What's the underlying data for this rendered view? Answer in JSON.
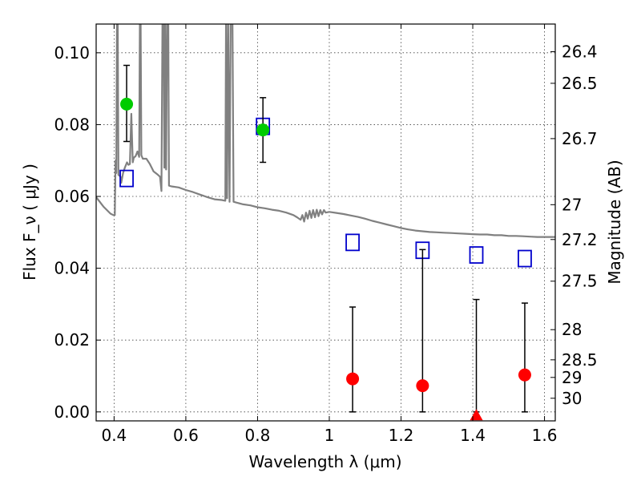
{
  "chart_data": {
    "type": "scatter",
    "title": "",
    "xlabel": "Wavelength  λ (μm)",
    "ylabel": "Flux  F_ν  ( μJy )",
    "ylabel_right": "Magnitude (AB)",
    "xlim": [
      0.35,
      1.63
    ],
    "ylim": [
      -0.0025,
      0.108
    ],
    "grid": true,
    "x_ticks": [
      0.4,
      0.6,
      0.8,
      1.0,
      1.2,
      1.4,
      1.6
    ],
    "x_tick_labels": [
      "0.4",
      "0.6",
      "0.8",
      "1",
      "1.2",
      "1.4",
      "1.6"
    ],
    "y_ticks": [
      0.0,
      0.02,
      0.04,
      0.06,
      0.08,
      0.1
    ],
    "y_tick_labels": [
      "0.00",
      "0.02",
      "0.04",
      "0.06",
      "0.08",
      "0.10"
    ],
    "mag_ticks": [
      {
        "label": "26.4",
        "flux": 0.1003
      },
      {
        "label": "26.5",
        "flux": 0.0915
      },
      {
        "label": "26.7",
        "flux": 0.0761
      },
      {
        "label": "27",
        "flux": 0.0577
      },
      {
        "label": "27.2",
        "flux": 0.048
      },
      {
        "label": "27.5",
        "flux": 0.0364
      },
      {
        "label": "28",
        "flux": 0.0229
      },
      {
        "label": "28.5",
        "flux": 0.0145
      },
      {
        "label": "29",
        "flux": 0.0096
      },
      {
        "label": "30",
        "flux": 0.0038
      }
    ],
    "series": [
      {
        "type": "line",
        "color": "#808080",
        "points": [
          [
            0.35,
            0.0598
          ],
          [
            0.36,
            0.0585
          ],
          [
            0.37,
            0.0572
          ],
          [
            0.38,
            0.0562
          ],
          [
            0.39,
            0.0552
          ],
          [
            0.398,
            0.0548
          ],
          [
            0.402,
            0.0548
          ],
          [
            0.404,
            0.07
          ],
          [
            0.406,
            0.0665
          ],
          [
            0.408,
            0.11
          ],
          [
            0.41,
            0.11
          ],
          [
            0.412,
            0.066
          ],
          [
            0.418,
            0.0655
          ],
          [
            0.42,
            0.0638
          ],
          [
            0.425,
            0.0665
          ],
          [
            0.43,
            0.068
          ],
          [
            0.436,
            0.0695
          ],
          [
            0.44,
            0.0688
          ],
          [
            0.444,
            0.069
          ],
          [
            0.448,
            0.083
          ],
          [
            0.452,
            0.0695
          ],
          [
            0.455,
            0.0708
          ],
          [
            0.46,
            0.0712
          ],
          [
            0.465,
            0.0725
          ],
          [
            0.47,
            0.071
          ],
          [
            0.472,
            0.11
          ],
          [
            0.474,
            0.11
          ],
          [
            0.476,
            0.0715
          ],
          [
            0.48,
            0.0705
          ],
          [
            0.49,
            0.0705
          ],
          [
            0.5,
            0.069
          ],
          [
            0.51,
            0.067
          ],
          [
            0.52,
            0.0662
          ],
          [
            0.528,
            0.0655
          ],
          [
            0.532,
            0.0615
          ],
          [
            0.535,
            0.11
          ],
          [
            0.538,
            0.11
          ],
          [
            0.54,
            0.068
          ],
          [
            0.542,
            0.11
          ],
          [
            0.545,
            0.0675
          ],
          [
            0.548,
            0.11
          ],
          [
            0.551,
            0.11
          ],
          [
            0.553,
            0.063
          ],
          [
            0.56,
            0.0628
          ],
          [
            0.58,
            0.0625
          ],
          [
            0.6,
            0.0618
          ],
          [
            0.62,
            0.0612
          ],
          [
            0.64,
            0.0605
          ],
          [
            0.66,
            0.0598
          ],
          [
            0.68,
            0.0592
          ],
          [
            0.7,
            0.059
          ],
          [
            0.71,
            0.0588
          ],
          [
            0.712,
            0.11
          ],
          [
            0.715,
            0.0595
          ],
          [
            0.718,
            0.11
          ],
          [
            0.722,
            0.0585
          ],
          [
            0.725,
            0.11
          ],
          [
            0.73,
            0.11
          ],
          [
            0.733,
            0.0585
          ],
          [
            0.74,
            0.0583
          ],
          [
            0.76,
            0.0578
          ],
          [
            0.78,
            0.0575
          ],
          [
            0.8,
            0.057
          ],
          [
            0.82,
            0.0567
          ],
          [
            0.84,
            0.0563
          ],
          [
            0.86,
            0.056
          ],
          [
            0.88,
            0.0555
          ],
          [
            0.9,
            0.0548
          ],
          [
            0.91,
            0.0542
          ],
          [
            0.92,
            0.0535
          ],
          [
            0.925,
            0.0548
          ],
          [
            0.93,
            0.053
          ],
          [
            0.935,
            0.0555
          ],
          [
            0.94,
            0.0538
          ],
          [
            0.945,
            0.056
          ],
          [
            0.95,
            0.054
          ],
          [
            0.955,
            0.0562
          ],
          [
            0.96,
            0.0542
          ],
          [
            0.965,
            0.0563
          ],
          [
            0.97,
            0.0545
          ],
          [
            0.975,
            0.0562
          ],
          [
            0.98,
            0.055
          ],
          [
            0.985,
            0.0562
          ],
          [
            0.99,
            0.0555
          ],
          [
            1.0,
            0.0557
          ],
          [
            1.02,
            0.0554
          ],
          [
            1.04,
            0.0551
          ],
          [
            1.06,
            0.0547
          ],
          [
            1.08,
            0.0543
          ],
          [
            1.1,
            0.0538
          ],
          [
            1.12,
            0.0532
          ],
          [
            1.14,
            0.0527
          ],
          [
            1.16,
            0.0522
          ],
          [
            1.18,
            0.0517
          ],
          [
            1.2,
            0.0512
          ],
          [
            1.22,
            0.0508
          ],
          [
            1.24,
            0.0505
          ],
          [
            1.26,
            0.0503
          ],
          [
            1.28,
            0.0501
          ],
          [
            1.3,
            0.05
          ],
          [
            1.32,
            0.0499
          ],
          [
            1.34,
            0.0498
          ],
          [
            1.36,
            0.0497
          ],
          [
            1.38,
            0.0496
          ],
          [
            1.4,
            0.0495
          ],
          [
            1.42,
            0.0494
          ],
          [
            1.44,
            0.0494
          ],
          [
            1.46,
            0.0492
          ],
          [
            1.48,
            0.0492
          ],
          [
            1.5,
            0.049
          ],
          [
            1.52,
            0.049
          ],
          [
            1.54,
            0.0489
          ],
          [
            1.56,
            0.0488
          ],
          [
            1.58,
            0.0487
          ],
          [
            1.6,
            0.0487
          ],
          [
            1.63,
            0.0487
          ]
        ]
      },
      {
        "type": "squares",
        "color": "#0000cc",
        "points": [
          [
            0.435,
            0.065
          ],
          [
            0.815,
            0.0795
          ],
          [
            1.065,
            0.0472
          ],
          [
            1.26,
            0.045
          ],
          [
            1.41,
            0.0437
          ],
          [
            1.545,
            0.0427
          ]
        ]
      },
      {
        "type": "points_with_errors",
        "color": "#00cc00",
        "points": [
          [
            0.435,
            0.0857,
            0.0753,
            0.0965
          ],
          [
            0.815,
            0.0785,
            0.0695,
            0.0875
          ]
        ]
      },
      {
        "type": "points_with_errors",
        "color": "#ff0000",
        "points": [
          [
            1.065,
            0.0092,
            0.0,
            0.0292
          ],
          [
            1.26,
            0.0073,
            0.0,
            0.0452
          ],
          [
            1.545,
            0.0103,
            0.0,
            0.0303
          ]
        ]
      },
      {
        "type": "upper_limit",
        "color": "#ff0000",
        "points": [
          [
            1.41,
            -0.001,
            0.0,
            0.0313
          ]
        ]
      }
    ]
  }
}
